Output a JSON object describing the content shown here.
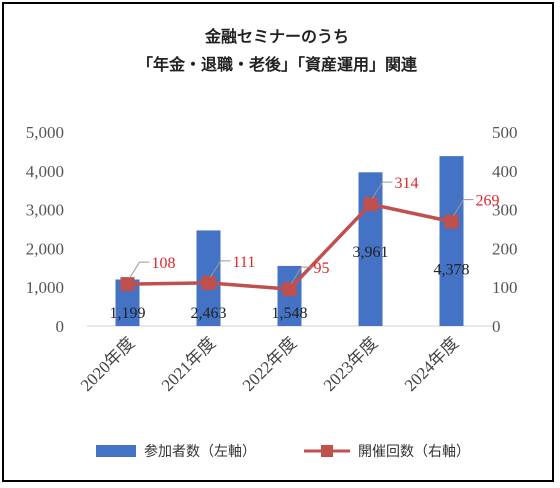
{
  "chart_data": {
    "type": "bar+line",
    "title_lines": [
      "金融セミナーのうち",
      "「年金・退職・老後」「資産運用」関連"
    ],
    "categories": [
      "2020年度",
      "2021年度",
      "2022年度",
      "2023年度",
      "2024年度"
    ],
    "series": [
      {
        "name": "参加者数（左軸）",
        "type": "bar",
        "axis": "left",
        "color": "#4472c4",
        "values": [
          1199,
          2463,
          1548,
          3961,
          4378
        ],
        "labels": [
          "1,199",
          "2,463",
          "1,548",
          "3,961",
          "4,378"
        ]
      },
      {
        "name": "開催回数（右軸）",
        "type": "line",
        "axis": "right",
        "color": "#c0504d",
        "values": [
          108,
          111,
          95,
          314,
          269
        ],
        "labels": [
          "108",
          "111",
          "95",
          "314",
          "269"
        ]
      }
    ],
    "y_left": {
      "ylim": [
        0,
        5000
      ],
      "ticks": [
        "0",
        "1,000",
        "2,000",
        "3,000",
        "4,000",
        "5,000"
      ]
    },
    "y_right": {
      "ylim": [
        0,
        500
      ],
      "ticks": [
        "0",
        "100",
        "200",
        "300",
        "400",
        "500"
      ]
    },
    "grid": false,
    "legend_position": "bottom"
  }
}
